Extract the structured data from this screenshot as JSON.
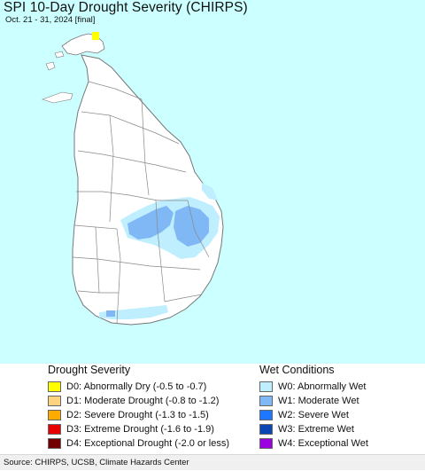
{
  "header": {
    "title": "SPI 10-Day Drought Severity (CHIRPS)",
    "subtitle": "Oct. 21 - 31, 2024 [final]"
  },
  "map": {
    "ocean_color": "#ccffff",
    "land_color": "#ffffff",
    "border_color": "#777777"
  },
  "legend": {
    "drought": {
      "heading": "Drought Severity",
      "items": [
        {
          "label": "D0: Abnormally Dry (-0.5 to -0.7)",
          "color": "#ffff00"
        },
        {
          "label": "D1: Moderate Drought (-0.8 to -1.2)",
          "color": "#fcd37f"
        },
        {
          "label": "D2: Severe Drought (-1.3 to -1.5)",
          "color": "#ffaa00"
        },
        {
          "label": "D3: Extreme Drought (-1.6 to -1.9)",
          "color": "#e60000"
        },
        {
          "label": "D4: Exceptional Drought (-2.0 or less)",
          "color": "#730000"
        }
      ]
    },
    "wet": {
      "heading": "Wet Conditions",
      "items": [
        {
          "label": "W0: Abnormally Wet",
          "color": "#bfeeff"
        },
        {
          "label": "W1: Moderate Wet",
          "color": "#7fb8f5"
        },
        {
          "label": "W2: Severe Wet",
          "color": "#1e78ff"
        },
        {
          "label": "W3: Extreme Wet",
          "color": "#0a46b4"
        },
        {
          "label": "W4: Exceptional Wet",
          "color": "#9b00e0"
        }
      ]
    }
  },
  "footer": {
    "source": "Source: CHIRPS, UCSB, Climate Hazards Center"
  }
}
